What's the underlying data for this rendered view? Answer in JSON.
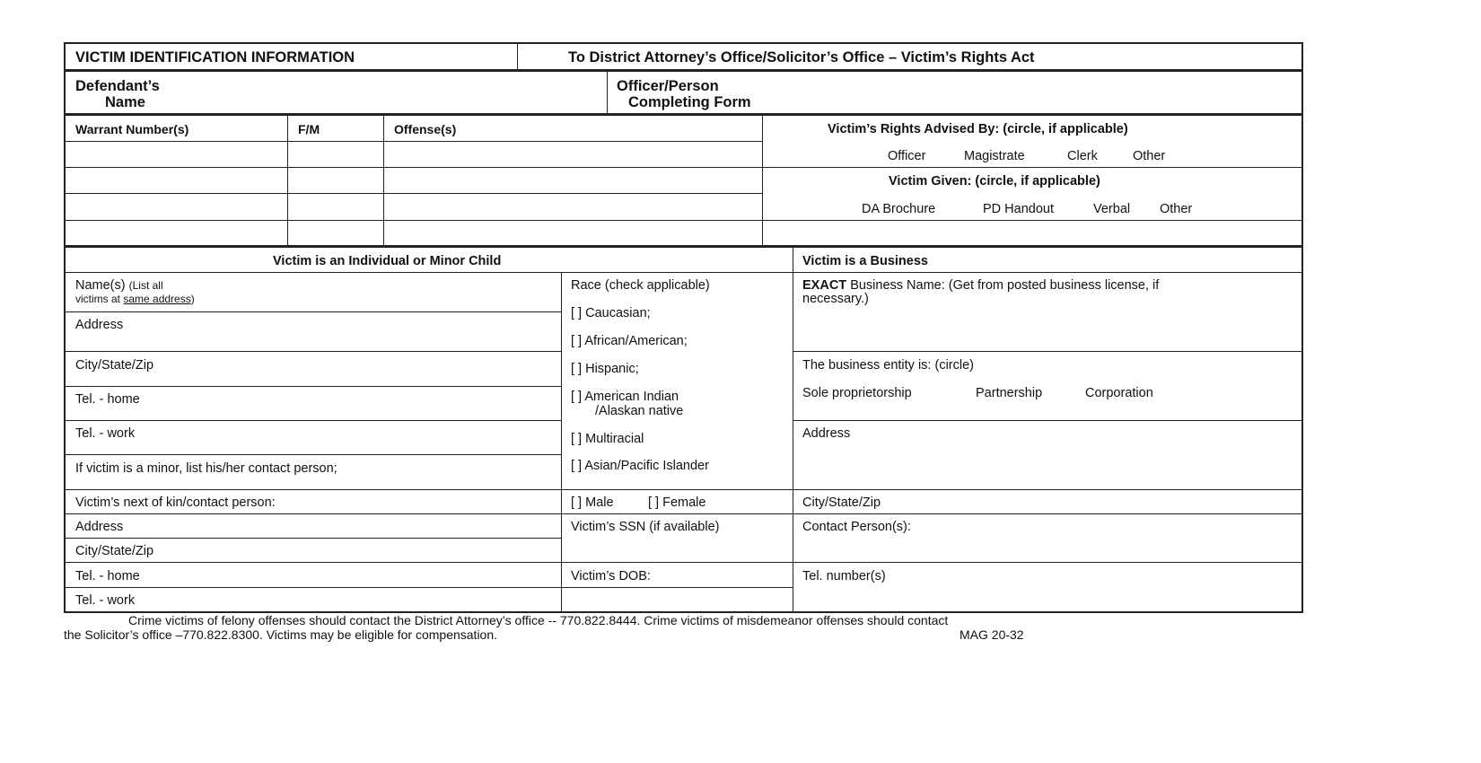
{
  "header": {
    "title": "VICTIM IDENTIFICATION INFORMATION",
    "subtitle": "To District Attorney’s Office/Solicitor’s Office  – Victim’s Rights Act",
    "defendant_line1": "Defendant’s",
    "defendant_line2": "Name",
    "officer_line1": "Officer/Person",
    "officer_line2": "Completing Form"
  },
  "warrant_table": {
    "columns": [
      "Warrant Number(s)",
      "F/M",
      "Offense(s)"
    ],
    "rows": [
      [
        "",
        "",
        ""
      ],
      [
        "",
        "",
        ""
      ],
      [
        "",
        "",
        ""
      ],
      [
        "",
        "",
        ""
      ]
    ]
  },
  "rights": {
    "advised_label": "Victim’s Rights Advised By: (circle, if applicable)",
    "advised_options": [
      "Officer",
      "Magistrate",
      "Clerk",
      "Other"
    ],
    "given_label": "Victim Given: (circle, if applicable)",
    "given_options": [
      "DA Brochure",
      "PD Handout",
      "Verbal",
      "Other"
    ]
  },
  "individual": {
    "heading": "Victim is an Individual or Minor Child",
    "names_label": "Name(s)",
    "names_note1": "(List all",
    "names_note2": "victims at",
    "names_note3": "same address",
    "names_note4": ")",
    "address": "Address",
    "city": "City/State/Zip",
    "tel_home": "Tel. - home",
    "tel_work": "Tel. - work",
    "minor_contact": "If victim is a minor, list his/her contact person;",
    "next_of_kin": "Victim’s next of kin/contact person:",
    "kin_address": "Address",
    "kin_city": "City/State/Zip",
    "kin_tel_home": "Tel. - home",
    "kin_tel_work": "Tel. -  work"
  },
  "race": {
    "label": "Race (check applicable)",
    "options": [
      "[  ] Caucasian;",
      "[  ] African/American;",
      "[  ] Hispanic;",
      "[  ] American Indian",
      "[  ] Multiracial",
      "[  ] Asian/Pacific Islander"
    ],
    "american_indian_line2": "/Alaskan native",
    "male": "[  ] Male",
    "female": "[  ] Female",
    "ssn": "Victim’s SSN (if available)",
    "dob": "Victim’s DOB:"
  },
  "business": {
    "heading": "Victim is a Business",
    "name_bold": "EXACT",
    "name_label": "Business Name: (Get from posted business license, if",
    "name_label2": "necessary.)",
    "entity_label": "The business entity is: (circle)",
    "entity_options": [
      "Sole proprietorship",
      "Partnership",
      "Corporation"
    ],
    "address": "Address",
    "city": "City/State/Zip",
    "contact": "Contact Person(s):",
    "tel": "Tel. number(s)"
  },
  "footer": {
    "line1": "Crime victims of felony offenses should contact the District Attorney’s office -- 770.822.8444.  Crime victims of misdemeanor offenses should contact",
    "line2": "the Solicitor’s office –770.822.8300.  Victims may be eligible for compensation.",
    "form_number": "MAG 20-32"
  }
}
